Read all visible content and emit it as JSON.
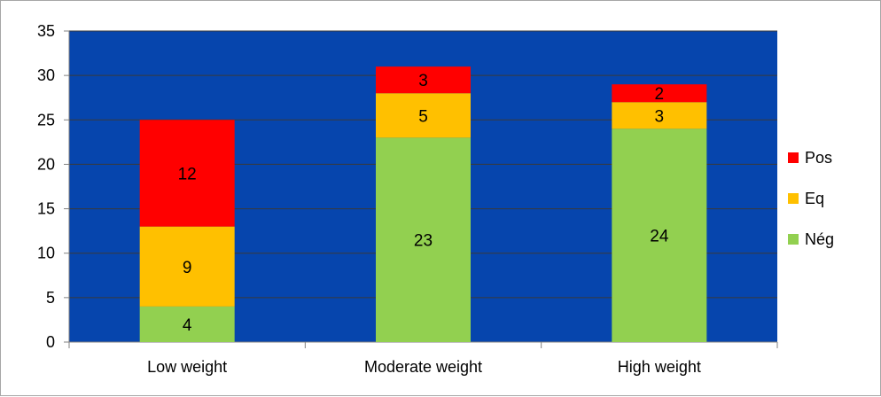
{
  "chart_data": {
    "type": "bar",
    "stacked": true,
    "categories": [
      "Low weight",
      "Moderate weight",
      "High weight"
    ],
    "series": [
      {
        "name": "Nég",
        "values": [
          4,
          23,
          24
        ],
        "color": "#92d050"
      },
      {
        "name": "Eq",
        "values": [
          9,
          5,
          3
        ],
        "color": "#ffc000"
      },
      {
        "name": "Pos",
        "values": [
          12,
          3,
          2
        ],
        "color": "#ff0000"
      }
    ],
    "ylim": [
      0,
      35
    ],
    "yticks": [
      0,
      5,
      10,
      15,
      20,
      25,
      30,
      35
    ],
    "plot_background": "#0645ad",
    "grid": true,
    "legend_position": "right",
    "title": "",
    "xlabel": "",
    "ylabel": ""
  }
}
